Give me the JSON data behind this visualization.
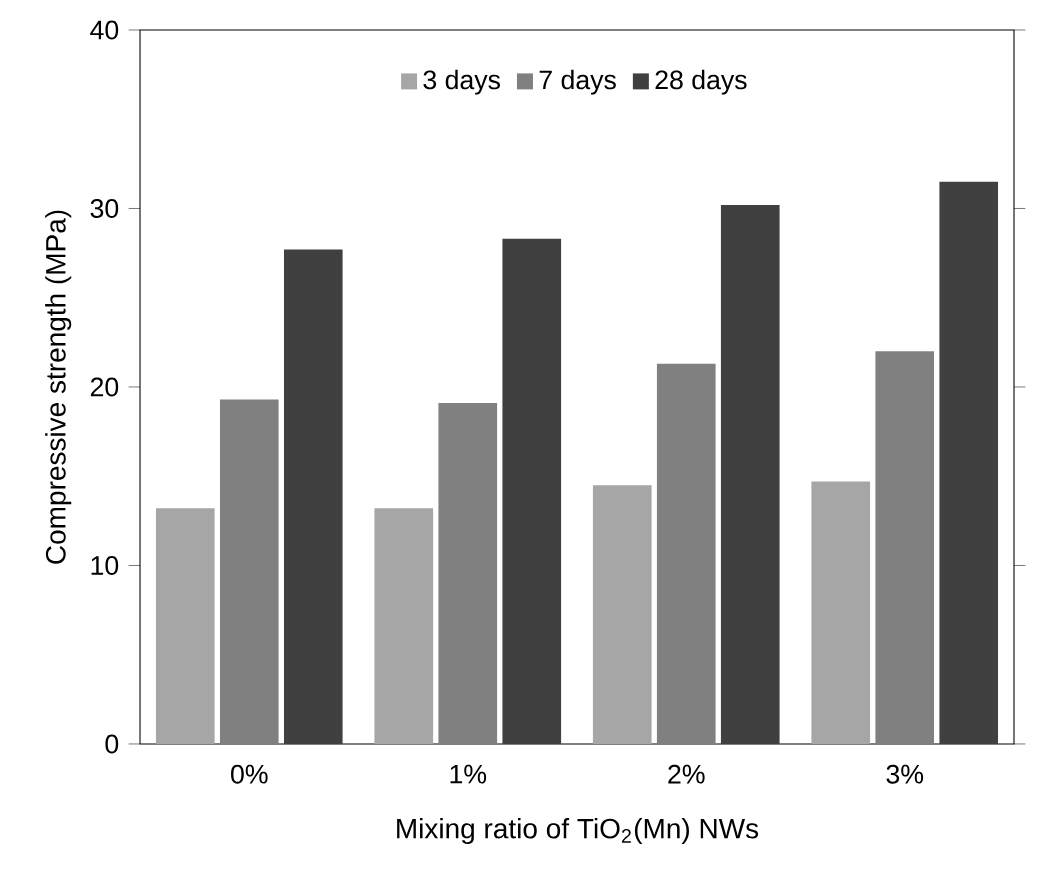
{
  "chart_data": {
    "type": "bar",
    "xlabel": "Mixing ratio of TiO$_{2}$(Mn) NWs",
    "ylabel": "Compressive strength (MPa)",
    "categories": [
      "0%",
      "1%",
      "2%",
      "3%"
    ],
    "series": [
      {
        "name": "3 days",
        "color": "#a6a6a6",
        "values": [
          13.2,
          13.2,
          14.5,
          14.7
        ]
      },
      {
        "name": "7 days",
        "color": "#808080",
        "values": [
          19.3,
          19.1,
          21.3,
          22.0
        ]
      },
      {
        "name": "28 days",
        "color": "#404040",
        "values": [
          27.7,
          28.3,
          30.2,
          31.5
        ]
      }
    ],
    "ylim": [
      0,
      40
    ],
    "yticks": [
      0,
      10,
      20,
      30,
      40
    ],
    "legend": "top",
    "grid": false
  }
}
